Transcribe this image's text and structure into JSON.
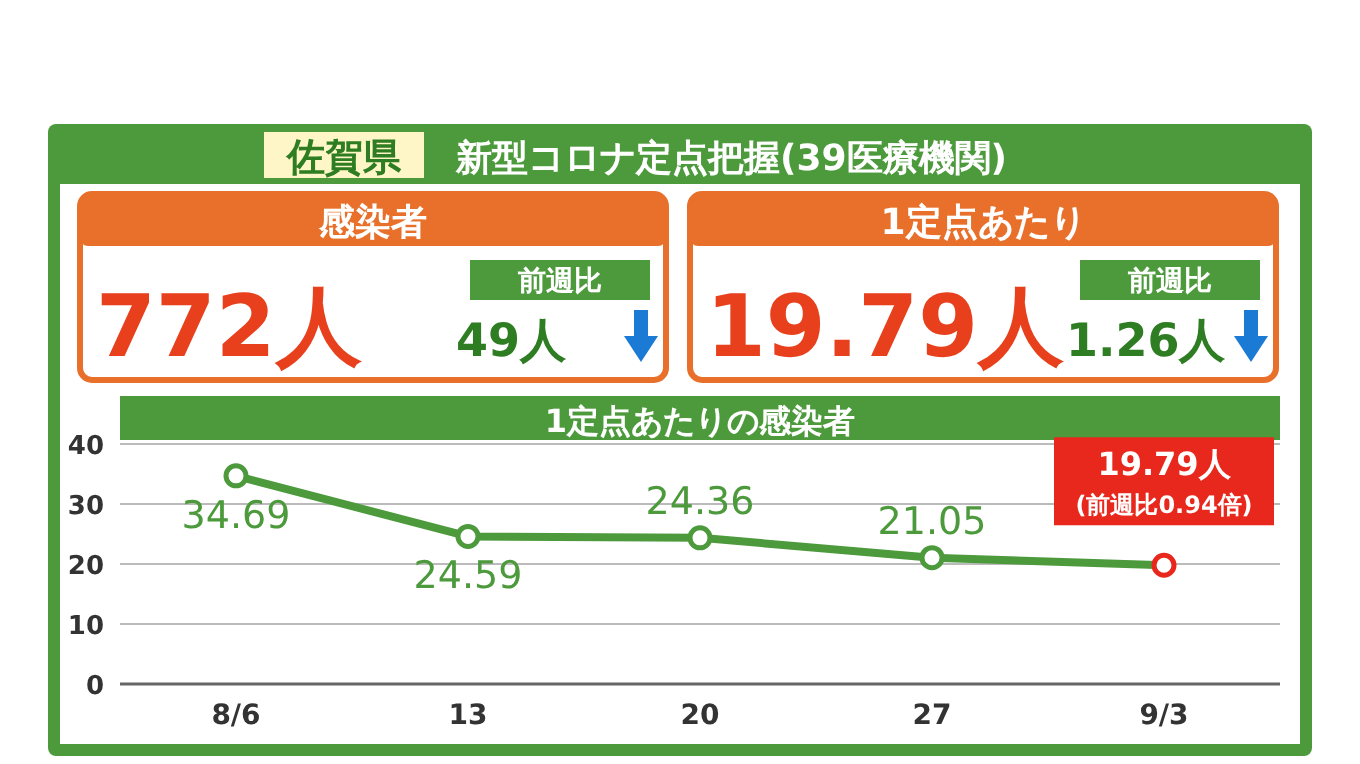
{
  "chart_data": [
    {
      "type": "other",
      "subtitle": "佐賀県",
      "title": "新型コロナ定点把握(39医療機関)",
      "annotations": [
        "感染者",
        "772人",
        "前週比",
        "49人",
        "1定点あたり",
        "19.79人",
        "前週比",
        "1.26人"
      ]
    },
    {
      "type": "line",
      "title": "1定点あたりの感染者",
      "categories": [
        "8/6",
        "13",
        "20",
        "27",
        "9/3"
      ],
      "series": [
        {
          "color": "#4c9a3c",
          "values": [
            34.69,
            24.59,
            24.36,
            21.05,
            19.79
          ],
          "colors": [
            "#4c9a3c",
            "#4c9a3c",
            "#4c9a3c",
            "#4c9a3c",
            "#e8281c"
          ],
          "value_labels": [
            "34.69",
            "24.59",
            "24.36",
            "21.05",
            "19.79人"
          ]
        }
      ],
      "annotations": [
        {
          "text": "(前週比0.94倍)",
          "x": "9/3",
          "y": 19.79
        }
      ],
      "ylim": [
        0,
        40
      ],
      "yticks": [
        0,
        10,
        20,
        30,
        40
      ],
      "grid": "y",
      "marker": "circle",
      "line_style": "solid"
    }
  ]
}
